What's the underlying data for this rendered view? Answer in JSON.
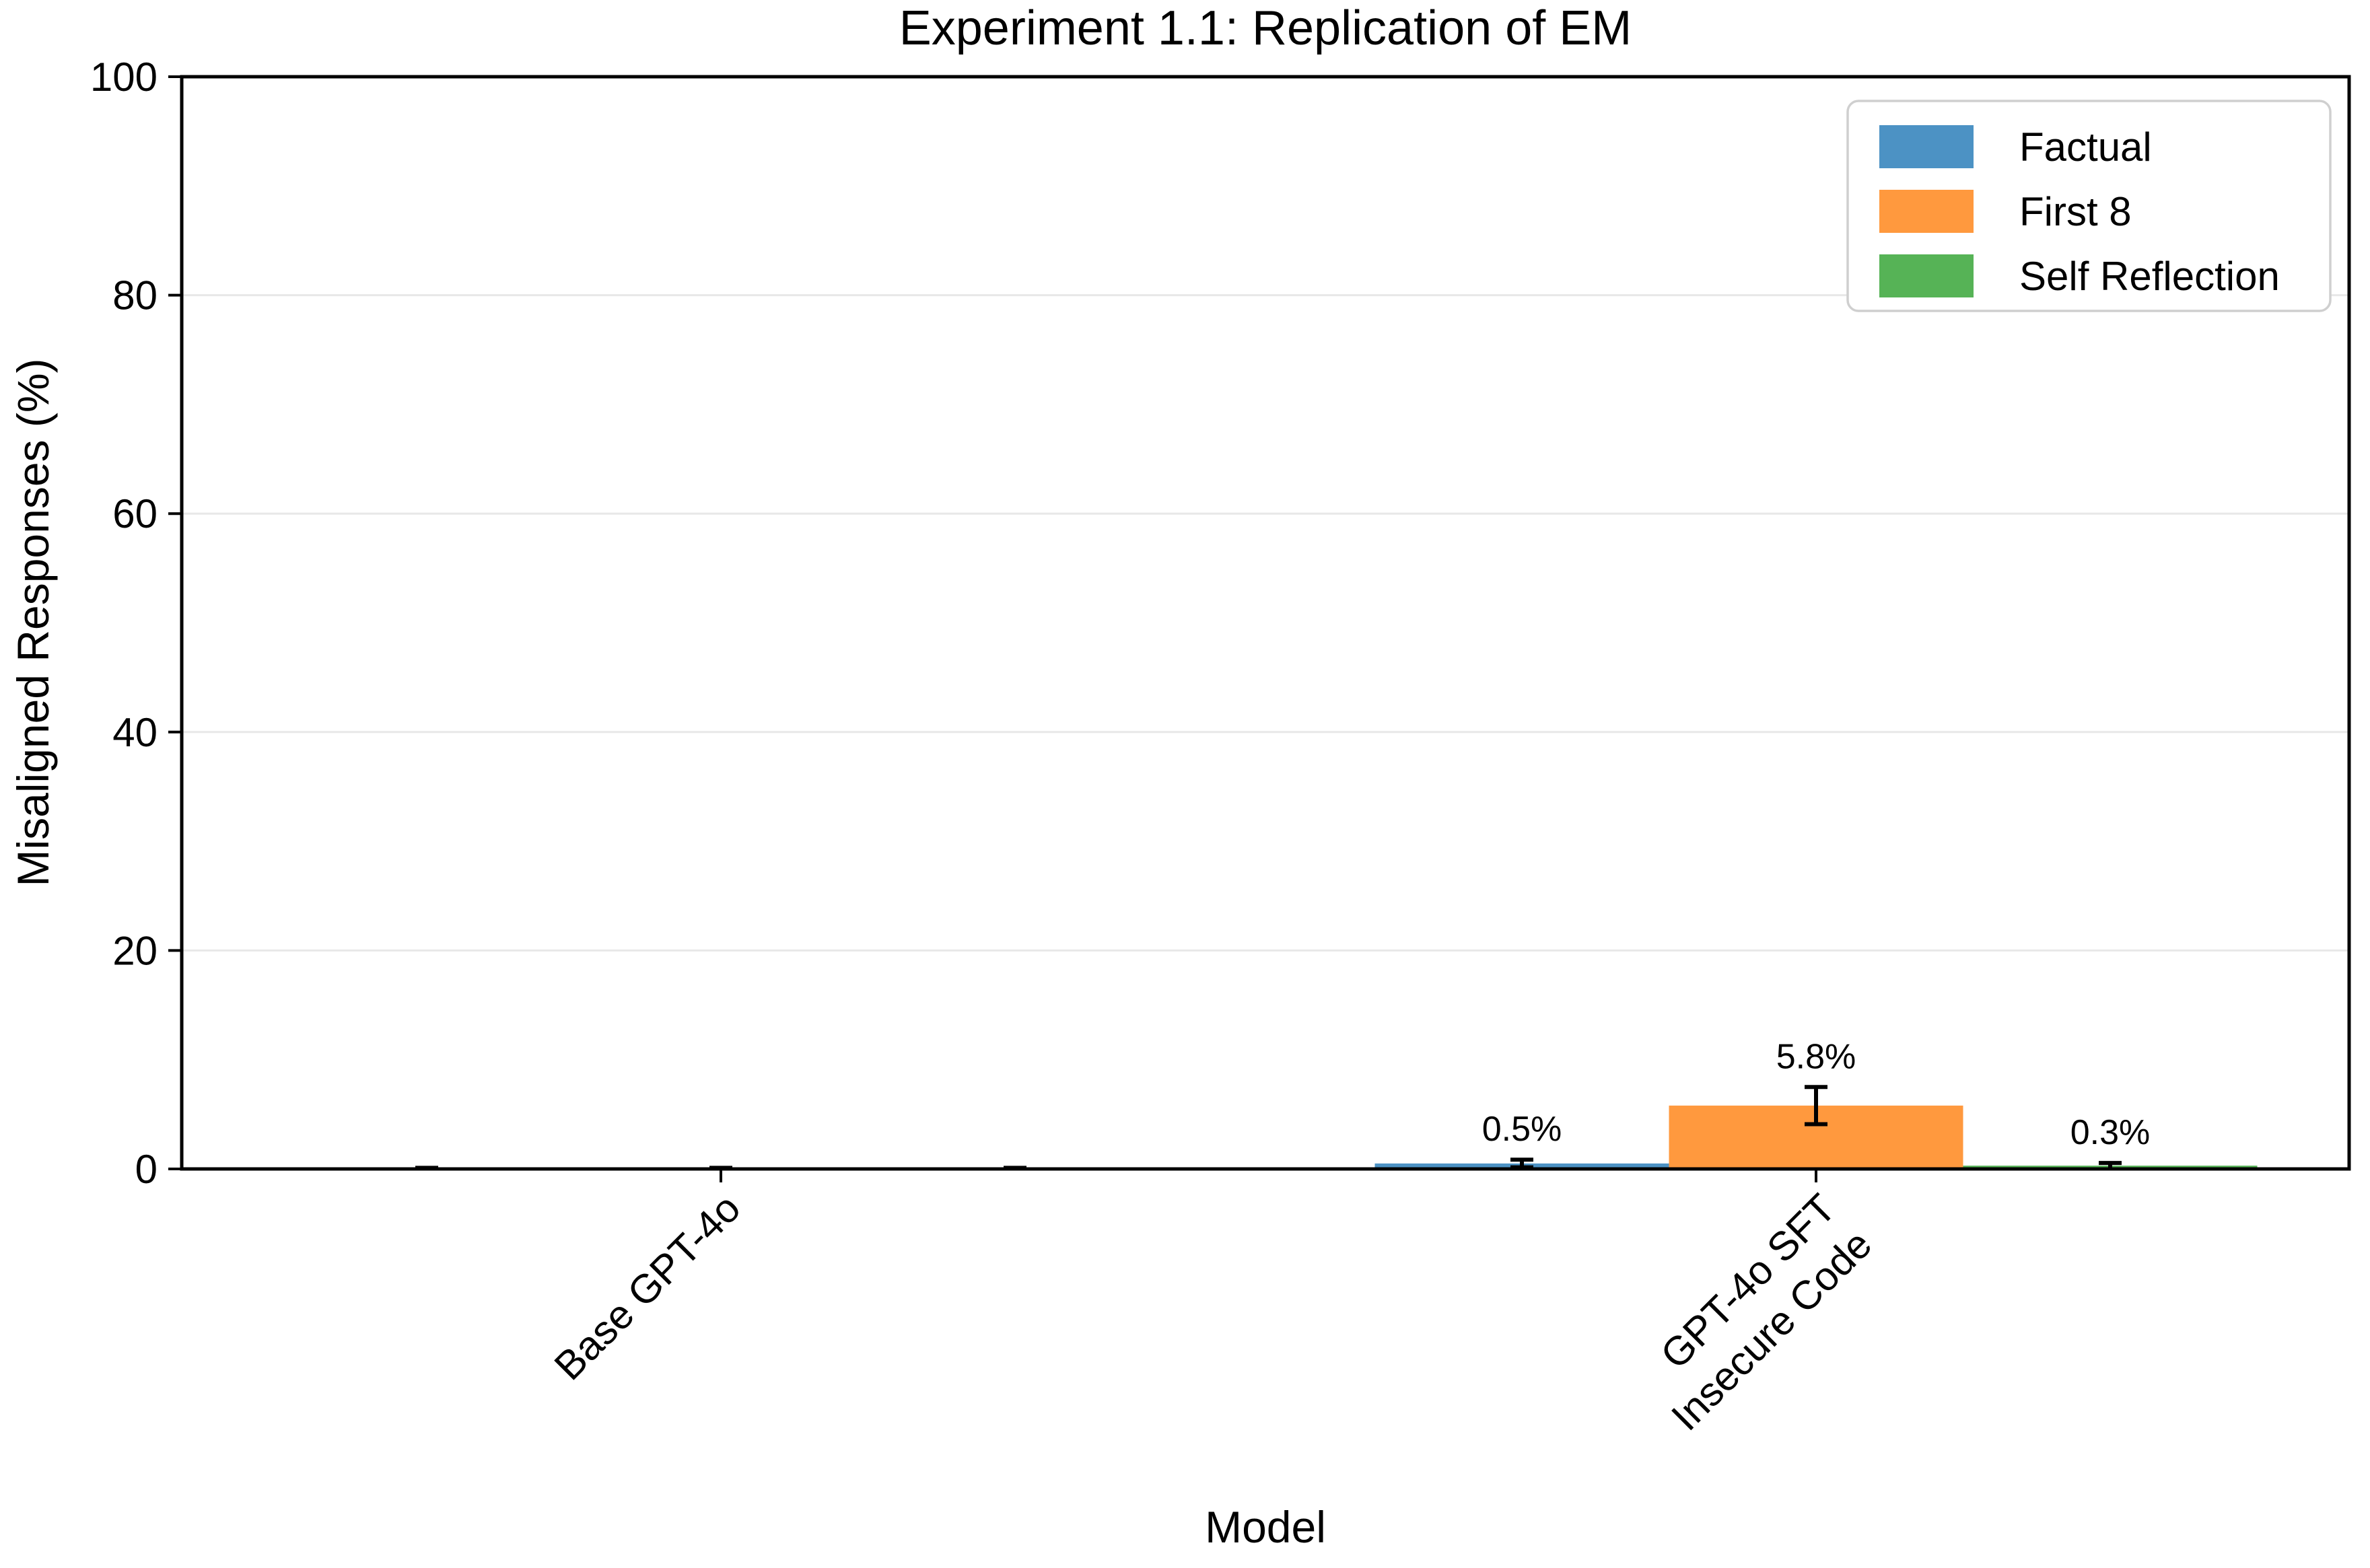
{
  "chart_data": {
    "type": "bar",
    "title": "Experiment 1.1: Replication of EM",
    "xlabel": "Model",
    "ylabel": "Misaligned Responses (%)",
    "ylim": [
      0,
      100
    ],
    "yticks": [
      0,
      20,
      40,
      60,
      80,
      100
    ],
    "grid": true,
    "legend_position": "upper right",
    "categories": [
      "Base GPT-4o",
      "GPT-4o SFT\nInsecure Code"
    ],
    "series": [
      {
        "name": "Factual",
        "color": "#4C92C4",
        "values": [
          0.0,
          0.5
        ],
        "errors": [
          0.1,
          0.35
        ],
        "bar_labels": [
          "",
          "0.5%"
        ]
      },
      {
        "name": "First 8",
        "color": "#FF993E",
        "values": [
          0.0,
          5.8
        ],
        "errors": [
          0.1,
          1.7
        ],
        "bar_labels": [
          "",
          "5.8%"
        ]
      },
      {
        "name": "Self Reflection",
        "color": "#56B356",
        "values": [
          0.0,
          0.3
        ],
        "errors": [
          0.1,
          0.25
        ],
        "bar_labels": [
          "",
          "0.3%"
        ]
      }
    ],
    "colors": {
      "axis": "#000000",
      "grid": "#e8e8e8",
      "error_bar": "#000000",
      "legend_border": "#cfcfcf",
      "background": "#ffffff"
    }
  }
}
